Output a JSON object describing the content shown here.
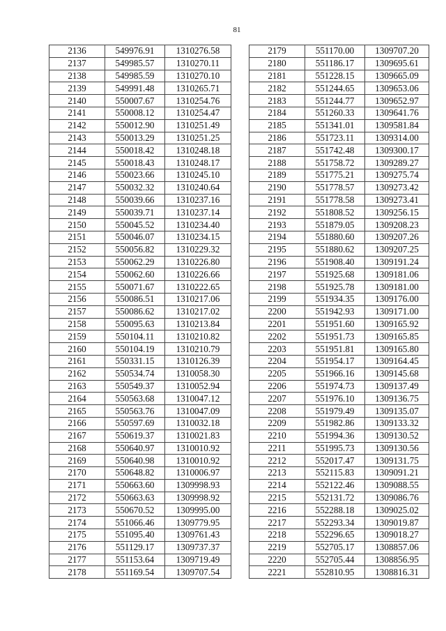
{
  "page_number": "81",
  "left_table": {
    "rows": [
      [
        "2136",
        "549976.91",
        "1310276.58"
      ],
      [
        "2137",
        "549985.57",
        "1310270.11"
      ],
      [
        "2138",
        "549985.59",
        "1310270.10"
      ],
      [
        "2139",
        "549991.48",
        "1310265.71"
      ],
      [
        "2140",
        "550007.67",
        "1310254.76"
      ],
      [
        "2141",
        "550008.12",
        "1310254.47"
      ],
      [
        "2142",
        "550012.90",
        "1310251.49"
      ],
      [
        "2143",
        "550013.29",
        "1310251.25"
      ],
      [
        "2144",
        "550018.42",
        "1310248.18"
      ],
      [
        "2145",
        "550018.43",
        "1310248.17"
      ],
      [
        "2146",
        "550023.66",
        "1310245.10"
      ],
      [
        "2147",
        "550032.32",
        "1310240.64"
      ],
      [
        "2148",
        "550039.66",
        "1310237.16"
      ],
      [
        "2149",
        "550039.71",
        "1310237.14"
      ],
      [
        "2150",
        "550045.52",
        "1310234.40"
      ],
      [
        "2151",
        "550046.07",
        "1310234.15"
      ],
      [
        "2152",
        "550056.82",
        "1310229.32"
      ],
      [
        "2153",
        "550062.29",
        "1310226.80"
      ],
      [
        "2154",
        "550062.60",
        "1310226.66"
      ],
      [
        "2155",
        "550071.67",
        "1310222.65"
      ],
      [
        "2156",
        "550086.51",
        "1310217.06"
      ],
      [
        "2157",
        "550086.62",
        "1310217.02"
      ],
      [
        "2158",
        "550095.63",
        "1310213.84"
      ],
      [
        "2159",
        "550104.11",
        "1310210.82"
      ],
      [
        "2160",
        "550104.19",
        "1310210.79"
      ],
      [
        "2161",
        "550331.15",
        "1310126.39"
      ],
      [
        "2162",
        "550534.74",
        "1310058.30"
      ],
      [
        "2163",
        "550549.37",
        "1310052.94"
      ],
      [
        "2164",
        "550563.68",
        "1310047.12"
      ],
      [
        "2165",
        "550563.76",
        "1310047.09"
      ],
      [
        "2166",
        "550597.69",
        "1310032.18"
      ],
      [
        "2167",
        "550619.37",
        "1310021.83"
      ],
      [
        "2168",
        "550640.97",
        "1310010.92"
      ],
      [
        "2169",
        "550640.98",
        "1310010.92"
      ],
      [
        "2170",
        "550648.82",
        "1310006.97"
      ],
      [
        "2171",
        "550663.60",
        "1309998.93"
      ],
      [
        "2172",
        "550663.63",
        "1309998.92"
      ],
      [
        "2173",
        "550670.52",
        "1309995.00"
      ],
      [
        "2174",
        "551066.46",
        "1309779.95"
      ],
      [
        "2175",
        "551095.40",
        "1309761.43"
      ],
      [
        "2176",
        "551129.17",
        "1309737.37"
      ],
      [
        "2177",
        "551153.64",
        "1309719.49"
      ],
      [
        "2178",
        "551169.54",
        "1309707.54"
      ]
    ]
  },
  "right_table": {
    "rows": [
      [
        "2179",
        "551170.00",
        "1309707.20"
      ],
      [
        "2180",
        "551186.17",
        "1309695.61"
      ],
      [
        "2181",
        "551228.15",
        "1309665.09"
      ],
      [
        "2182",
        "551244.65",
        "1309653.06"
      ],
      [
        "2183",
        "551244.77",
        "1309652.97"
      ],
      [
        "2184",
        "551260.33",
        "1309641.76"
      ],
      [
        "2185",
        "551341.01",
        "1309581.84"
      ],
      [
        "2186",
        "551723.11",
        "1309314.00"
      ],
      [
        "2187",
        "551742.48",
        "1309300.17"
      ],
      [
        "2188",
        "551758.72",
        "1309289.27"
      ],
      [
        "2189",
        "551775.21",
        "1309275.74"
      ],
      [
        "2190",
        "551778.57",
        "1309273.42"
      ],
      [
        "2191",
        "551778.58",
        "1309273.41"
      ],
      [
        "2192",
        "551808.52",
        "1309256.15"
      ],
      [
        "2193",
        "551879.05",
        "1309208.23"
      ],
      [
        "2194",
        "551880.60",
        "1309207.26"
      ],
      [
        "2195",
        "551880.62",
        "1309207.25"
      ],
      [
        "2196",
        "551908.40",
        "1309191.24"
      ],
      [
        "2197",
        "551925.68",
        "1309181.06"
      ],
      [
        "2198",
        "551925.78",
        "1309181.00"
      ],
      [
        "2199",
        "551934.35",
        "1309176.00"
      ],
      [
        "2200",
        "551942.93",
        "1309171.00"
      ],
      [
        "2201",
        "551951.60",
        "1309165.92"
      ],
      [
        "2202",
        "551951.73",
        "1309165.85"
      ],
      [
        "2203",
        "551951.81",
        "1309165.80"
      ],
      [
        "2204",
        "551954.17",
        "1309164.45"
      ],
      [
        "2205",
        "551966.16",
        "1309145.68"
      ],
      [
        "2206",
        "551974.73",
        "1309137.49"
      ],
      [
        "2207",
        "551976.10",
        "1309136.75"
      ],
      [
        "2208",
        "551979.49",
        "1309135.07"
      ],
      [
        "2209",
        "551982.86",
        "1309133.32"
      ],
      [
        "2210",
        "551994.36",
        "1309130.52"
      ],
      [
        "2211",
        "551995.73",
        "1309130.56"
      ],
      [
        "2212",
        "552017.47",
        "1309131.75"
      ],
      [
        "2213",
        "552115.83",
        "1309091.21"
      ],
      [
        "2214",
        "552122.46",
        "1309088.55"
      ],
      [
        "2215",
        "552131.72",
        "1309086.76"
      ],
      [
        "2216",
        "552288.18",
        "1309025.02"
      ],
      [
        "2217",
        "552293.34",
        "1309019.87"
      ],
      [
        "2218",
        "552296.65",
        "1309018.27"
      ],
      [
        "2219",
        "552705.17",
        "1308857.06"
      ],
      [
        "2220",
        "552705.44",
        "1308856.95"
      ],
      [
        "2221",
        "552810.95",
        "1308816.31"
      ]
    ]
  }
}
